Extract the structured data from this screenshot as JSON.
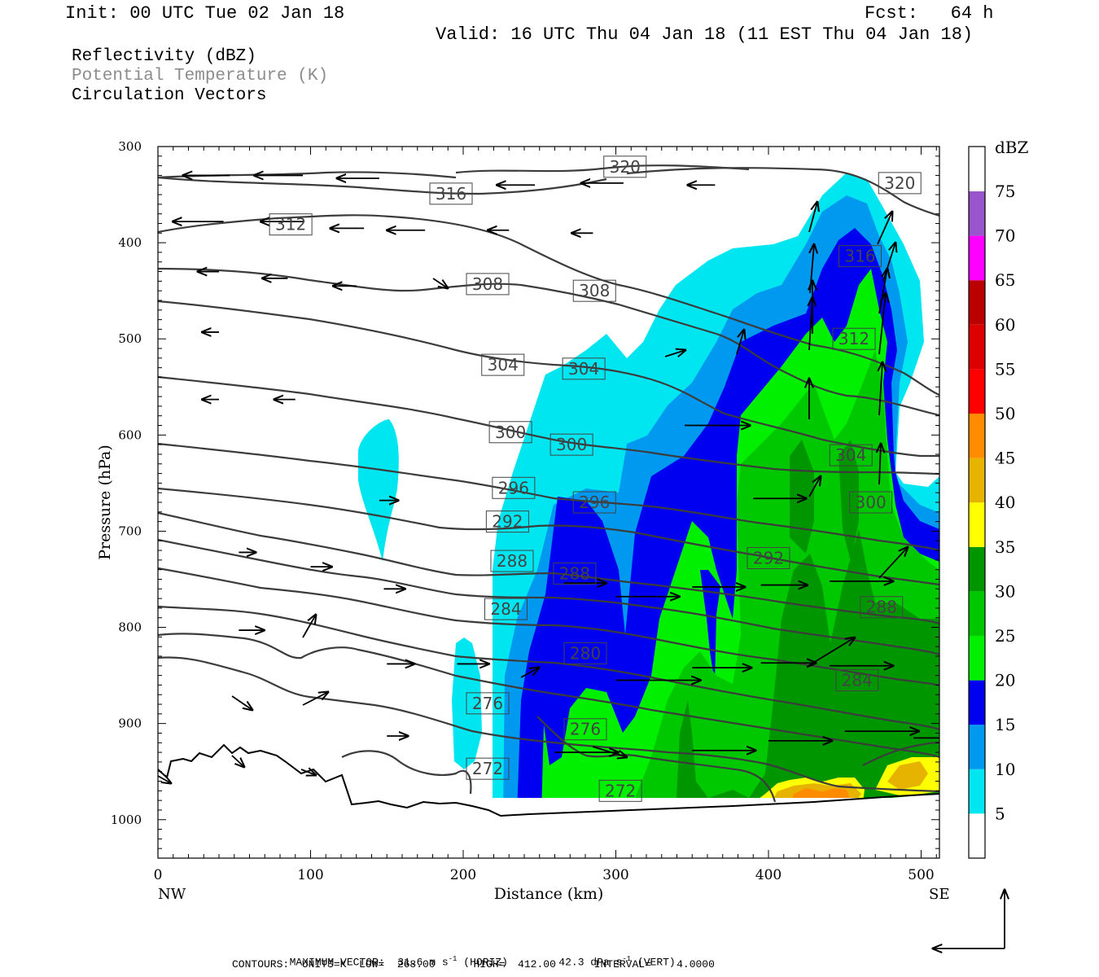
{
  "header": {
    "init": "Init: 00 UTC Tue 02 Jan 18",
    "fcst": "Fcst:   64 h",
    "valid": "Valid: 16 UTC Thu 04 Jan 18 (11 EST Thu 04 Jan 18)",
    "field1": "Reflectivity (dBZ)",
    "field2": "Potential Temperature (K)",
    "field3": "Circulation Vectors"
  },
  "footer": {
    "line1_a": "MAXIMUM VECTOR:  31.6 m s",
    "line1_b": "-1",
    "line1_c": " (HORIZ)        42.3 dPa s",
    "line1_d": "-1",
    "line1_e": " (VERT)",
    "line2": "CONTOURS:  UNITS=K  LOW=  268.00      HIGH=  412.00      INTERVAL=    4.0000"
  },
  "colors": {
    "cyan": "#00e6f0",
    "lightblue": "#0099f0",
    "blue": "#0000f0",
    "lightgreen": "#00f000",
    "green": "#00c800",
    "darkgreen": "#009600",
    "yellow": "#ffff00",
    "gold": "#e6b400",
    "orange": "#ff8c00",
    "red": "#ff0000",
    "darkred": "#dd0000",
    "maroon": "#bb0000",
    "magenta": "#ff00ff",
    "purple": "#9955cc"
  },
  "chart_data": {
    "type": "heatmap",
    "title": "Reflectivity (dBZ)",
    "xlabel": "Distance (km)",
    "ylabel": "Pressure (hPa)",
    "xlim": [
      0,
      512
    ],
    "ylim": [
      1040,
      300
    ],
    "x_ticks": [
      "0",
      "100",
      "200",
      "300",
      "400",
      "500"
    ],
    "y_ticks": [
      "300",
      "400",
      "500",
      "600",
      "700",
      "800",
      "900",
      "1000"
    ],
    "x_end_labels": [
      "NW",
      "SE"
    ],
    "colorbar": {
      "unit": "dBZ",
      "levels": [
        "5",
        "10",
        "15",
        "20",
        "25",
        "30",
        "35",
        "40",
        "45",
        "50",
        "55",
        "60",
        "65",
        "70",
        "75"
      ],
      "colors": [
        "#00e6f0",
        "#0099f0",
        "#0000f0",
        "#00f000",
        "#00c800",
        "#009600",
        "#ffff00",
        "#e6b400",
        "#ff8c00",
        "#ff0000",
        "#dd0000",
        "#bb0000",
        "#ff00ff",
        "#9955cc",
        "#ffffff"
      ]
    },
    "theta_labels": [
      {
        "text": "320",
        "x": 306,
        "p": 321
      },
      {
        "text": "320",
        "x": 486,
        "p": 338
      },
      {
        "text": "316",
        "x": 192,
        "p": 349
      },
      {
        "text": "312",
        "x": 87,
        "p": 381
      },
      {
        "text": "316",
        "x": 460,
        "p": 414
      },
      {
        "text": "308",
        "x": 216,
        "p": 443
      },
      {
        "text": "308",
        "x": 286,
        "p": 450
      },
      {
        "text": "312",
        "x": 456,
        "p": 500
      },
      {
        "text": "304",
        "x": 226,
        "p": 527
      },
      {
        "text": "304",
        "x": 279,
        "p": 531
      },
      {
        "text": "300",
        "x": 231,
        "p": 597
      },
      {
        "text": "300",
        "x": 271,
        "p": 610
      },
      {
        "text": "304",
        "x": 454,
        "p": 621
      },
      {
        "text": "296",
        "x": 233,
        "p": 655
      },
      {
        "text": "296",
        "x": 286,
        "p": 670
      },
      {
        "text": "300",
        "x": 467,
        "p": 670
      },
      {
        "text": "292",
        "x": 229,
        "p": 690
      },
      {
        "text": "288",
        "x": 232,
        "p": 731
      },
      {
        "text": "292",
        "x": 400,
        "p": 728
      },
      {
        "text": "288",
        "x": 273,
        "p": 744
      },
      {
        "text": "288",
        "x": 474,
        "p": 779
      },
      {
        "text": "284",
        "x": 228,
        "p": 781
      },
      {
        "text": "280",
        "x": 280,
        "p": 827
      },
      {
        "text": "284",
        "x": 458,
        "p": 855
      },
      {
        "text": "276",
        "x": 216,
        "p": 879
      },
      {
        "text": "276",
        "x": 280,
        "p": 906
      },
      {
        "text": "272",
        "x": 216,
        "p": 947
      },
      {
        "text": "272",
        "x": 303,
        "p": 970
      }
    ],
    "vectors": [
      {
        "x": 47,
        "p": 330,
        "dx": -2.2,
        "dp": 0
      },
      {
        "x": 95,
        "p": 330,
        "dx": -2.3,
        "dp": 0
      },
      {
        "x": 145,
        "p": 333,
        "dx": -2.0,
        "dp": 0
      },
      {
        "x": 247,
        "p": 340,
        "dx": -1.8,
        "dp": 0
      },
      {
        "x": 305,
        "p": 338,
        "dx": -2.0,
        "dp": 0
      },
      {
        "x": 365,
        "p": 340,
        "dx": -1.3,
        "dp": 0
      },
      {
        "x": 43,
        "p": 378,
        "dx": -2.4,
        "dp": 0
      },
      {
        "x": 95,
        "p": 378,
        "dx": -2.0,
        "dp": 0
      },
      {
        "x": 135,
        "p": 385,
        "dx": -1.6,
        "dp": 0
      },
      {
        "x": 175,
        "p": 387,
        "dx": -1.8,
        "dp": 0
      },
      {
        "x": 230,
        "p": 387,
        "dx": -1.0,
        "dp": 0
      },
      {
        "x": 285,
        "p": 390,
        "dx": -1.0,
        "dp": 0
      },
      {
        "x": 40,
        "p": 430,
        "dx": -1.0,
        "dp": 0
      },
      {
        "x": 85,
        "p": 437,
        "dx": -1.2,
        "dp": 0
      },
      {
        "x": 130,
        "p": 445,
        "dx": -1.1,
        "dp": 0
      },
      {
        "x": 40,
        "p": 493,
        "dx": -0.8,
        "dp": 0
      },
      {
        "x": 40,
        "p": 563,
        "dx": -0.8,
        "dp": 0
      },
      {
        "x": 90,
        "p": 563,
        "dx": -1.0,
        "dp": 0
      },
      {
        "x": 145,
        "p": 668,
        "dx": 0.9,
        "dp": 0
      },
      {
        "x": 53,
        "p": 722,
        "dx": 0.8,
        "dp": 0
      },
      {
        "x": 100,
        "p": 737,
        "dx": 1.0,
        "dp": 0
      },
      {
        "x": 148,
        "p": 760,
        "dx": 1.0,
        "dp": 0
      },
      {
        "x": 53,
        "p": 803,
        "dx": 1.2,
        "dp": 0
      },
      {
        "x": 150,
        "p": 838,
        "dx": 1.3,
        "dp": 0
      },
      {
        "x": 196,
        "p": 838,
        "dx": 1.5,
        "dp": 0
      },
      {
        "x": 150,
        "p": 913,
        "dx": 1.0,
        "dp": 0
      },
      {
        "x": 266,
        "p": 754,
        "dx": 2.0,
        "dp": 0
      },
      {
        "x": 300,
        "p": 768,
        "dx": 3.0,
        "dp": 0
      },
      {
        "x": 350,
        "p": 758,
        "dx": 2.5,
        "dp": 0
      },
      {
        "x": 395,
        "p": 756,
        "dx": 2.2,
        "dp": 0
      },
      {
        "x": 390,
        "p": 666,
        "dx": 2.5,
        "dp": 0
      },
      {
        "x": 345,
        "p": 590,
        "dx": 3.1,
        "dp": 0
      },
      {
        "x": 350,
        "p": 842,
        "dx": 2.8,
        "dp": 0
      },
      {
        "x": 395,
        "p": 837,
        "dx": 2.6,
        "dp": 0
      },
      {
        "x": 300,
        "p": 855,
        "dx": 4.0,
        "dp": 0
      },
      {
        "x": 260,
        "p": 930,
        "dx": 3.0,
        "dp": 0
      },
      {
        "x": 350,
        "p": 928,
        "dx": 3.0,
        "dp": 0
      },
      {
        "x": 400,
        "p": 918,
        "dx": 3.0,
        "dp": 0
      },
      {
        "x": 450,
        "p": 908,
        "dx": 3.5,
        "dp": 0
      },
      {
        "x": 495,
        "p": 915,
        "dx": 3.5,
        "dp": 0
      },
      {
        "x": 440,
        "p": 752,
        "dx": 3.0,
        "dp": 0
      },
      {
        "x": 440,
        "p": 840,
        "dx": 3.0,
        "dp": 0
      }
    ]
  }
}
